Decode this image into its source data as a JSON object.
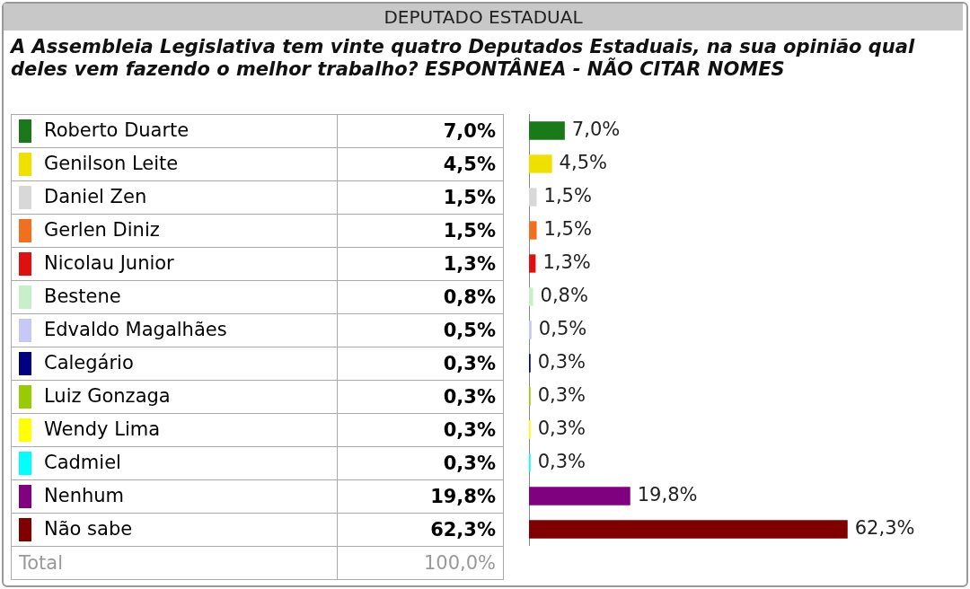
{
  "chart_data": {
    "type": "bar",
    "orientation": "horizontal",
    "title": "DEPUTADO ESTADUAL",
    "subtitle": "A Assembleia Legislativa tem vinte quatro Deputados Estaduais, na sua opinião qual deles vem fazendo o melhor trabalho? ESPONTÂNEA - NÃO CITAR NOMES",
    "categories": [
      "Roberto Duarte",
      "Genilson Leite",
      "Daniel Zen",
      "Gerlen Diniz",
      "Nicolau Junior",
      "Bestene",
      "Edvaldo Magalhães",
      "Calegário",
      "Luiz Gonzaga",
      "Wendy Lima",
      "Cadmiel",
      "Nenhum",
      "Não sabe"
    ],
    "values": [
      7.0,
      4.5,
      1.5,
      1.5,
      1.3,
      0.8,
      0.5,
      0.3,
      0.3,
      0.3,
      0.3,
      19.8,
      62.3
    ],
    "colors": [
      "#1a7a1a",
      "#f0e000",
      "#d8d8d8",
      "#f07020",
      "#e01010",
      "#c8f0c8",
      "#c8c8f8",
      "#000080",
      "#99cc00",
      "#ffff00",
      "#00ffff",
      "#800080",
      "#800000"
    ],
    "value_labels": [
      "7,0%",
      "4,5%",
      "1,5%",
      "1,5%",
      "1,3%",
      "0,8%",
      "0,5%",
      "0,3%",
      "0,3%",
      "0,3%",
      "0,3%",
      "19,8%",
      "62,3%"
    ],
    "annotations": [
      "Total",
      "100,0%"
    ]
  }
}
